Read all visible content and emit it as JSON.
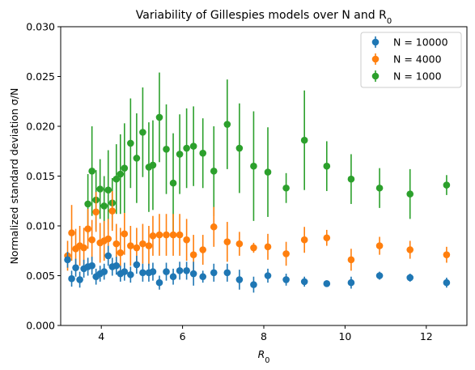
{
  "chart_data": {
    "type": "scatter",
    "title": "Variability of Gillespies models over N and R",
    "title_sub": "0",
    "xlabel_base": "R",
    "xlabel_sub": "0",
    "ylabel": "Normalized standard deviation σ/N",
    "xlim": [
      3.0,
      13.0
    ],
    "ylim": [
      0.0,
      0.03
    ],
    "xticks": [
      {
        "value": 4,
        "label": "4"
      },
      {
        "value": 6,
        "label": "6"
      },
      {
        "value": 8,
        "label": "8"
      },
      {
        "value": 10,
        "label": "10"
      },
      {
        "value": 12,
        "label": "12"
      }
    ],
    "yticks": [
      {
        "value": 0.0,
        "label": "0.000"
      },
      {
        "value": 0.005,
        "label": "0.005"
      },
      {
        "value": 0.01,
        "label": "0.010"
      },
      {
        "value": 0.015,
        "label": "0.015"
      },
      {
        "value": 0.02,
        "label": "0.020"
      },
      {
        "value": 0.025,
        "label": "0.025"
      },
      {
        "value": 0.03,
        "label": "0.030"
      }
    ],
    "legend_position": "top-right",
    "x": [
      3.17,
      3.27,
      3.37,
      3.47,
      3.57,
      3.67,
      3.77,
      3.87,
      3.97,
      4.07,
      4.17,
      4.27,
      4.37,
      4.47,
      4.57,
      4.72,
      4.87,
      5.02,
      5.17,
      5.27,
      5.43,
      5.6,
      5.77,
      5.93,
      6.1,
      6.27,
      6.5,
      6.77,
      7.1,
      7.4,
      7.75,
      8.1,
      8.55,
      9.0,
      9.55,
      10.15,
      10.85,
      11.6,
      12.5
    ],
    "series": [
      {
        "name": "N = 10000",
        "color": "#1f77b4",
        "values": [
          0.0066,
          0.0047,
          0.0058,
          0.0046,
          0.0057,
          0.0059,
          0.006,
          0.0049,
          0.0052,
          0.0054,
          0.007,
          0.0059,
          0.006,
          0.0052,
          0.0054,
          0.0051,
          0.0061,
          0.0053,
          0.0053,
          0.0054,
          0.0043,
          0.0054,
          0.0049,
          0.0055,
          0.0055,
          0.0052,
          0.0049,
          0.0053,
          0.0053,
          0.0046,
          0.0041,
          0.005,
          0.0046,
          0.0044,
          0.0042,
          0.0043,
          0.005,
          0.0048,
          0.0043
        ],
        "errors": [
          0.0008,
          0.0008,
          0.0009,
          0.0008,
          0.0009,
          0.0009,
          0.0009,
          0.0008,
          0.0008,
          0.0008,
          0.001,
          0.0009,
          0.0009,
          0.0008,
          0.0009,
          0.0008,
          0.0009,
          0.0009,
          0.0009,
          0.0009,
          0.0007,
          0.0009,
          0.0008,
          0.0009,
          0.0009,
          0.0012,
          0.0006,
          0.0009,
          0.0009,
          0.001,
          0.0008,
          0.0007,
          0.0006,
          0.0005,
          0.0003,
          0.0006,
          0.0004,
          0.0004,
          0.0005
        ]
      },
      {
        "name": "N = 4000",
        "color": "#ff7f0e",
        "values": [
          0.007,
          0.0093,
          0.0077,
          0.008,
          0.0078,
          0.0097,
          0.0086,
          0.0114,
          0.0083,
          0.0085,
          0.0087,
          0.0115,
          0.0082,
          0.0073,
          0.0092,
          0.008,
          0.0078,
          0.0082,
          0.008,
          0.009,
          0.0091,
          0.0091,
          0.0091,
          0.0091,
          0.0086,
          0.0071,
          0.0076,
          0.0099,
          0.0084,
          0.0082,
          0.0078,
          0.0079,
          0.0072,
          0.0086,
          0.0088,
          0.0066,
          0.008,
          0.0076,
          0.0071
        ],
        "errors": [
          0.0015,
          0.0028,
          0.002,
          0.002,
          0.002,
          0.002,
          0.002,
          0.002,
          0.002,
          0.002,
          0.002,
          0.002,
          0.002,
          0.0025,
          0.0021,
          0.002,
          0.002,
          0.002,
          0.002,
          0.002,
          0.0021,
          0.0021,
          0.0021,
          0.0021,
          0.0021,
          0.002,
          0.0015,
          0.002,
          0.002,
          0.0012,
          0.0005,
          0.0013,
          0.0012,
          0.0013,
          0.0008,
          0.0011,
          0.0009,
          0.0009,
          0.0008
        ]
      },
      {
        "name": "N = 1000",
        "color": "#2ca02c",
        "values": [
          null,
          null,
          null,
          null,
          null,
          0.0122,
          0.0155,
          0.0126,
          0.0137,
          0.012,
          0.0136,
          0.0123,
          0.0147,
          0.0152,
          0.0158,
          0.0183,
          0.0168,
          0.0194,
          0.0159,
          0.0161,
          0.0209,
          0.0177,
          0.0143,
          0.0172,
          0.0178,
          0.018,
          0.0173,
          0.0155,
          0.0202,
          0.0178,
          0.016,
          0.0154,
          0.0138,
          0.0186,
          0.016,
          0.0147,
          0.0138,
          0.0132,
          0.0141
        ],
        "errors": [
          0,
          0,
          0,
          0,
          0,
          0.003,
          0.0045,
          0.003,
          0.003,
          0.003,
          0.004,
          0.0025,
          0.0035,
          0.004,
          0.0045,
          0.0045,
          0.0045,
          0.0045,
          0.0045,
          0.0045,
          0.0045,
          0.0045,
          0.005,
          0.004,
          0.004,
          0.004,
          0.0035,
          0.0045,
          0.0045,
          0.0045,
          0.0055,
          0.0045,
          0.0015,
          0.005,
          0.0025,
          0.0025,
          0.002,
          0.0025,
          0.001
        ]
      }
    ]
  }
}
